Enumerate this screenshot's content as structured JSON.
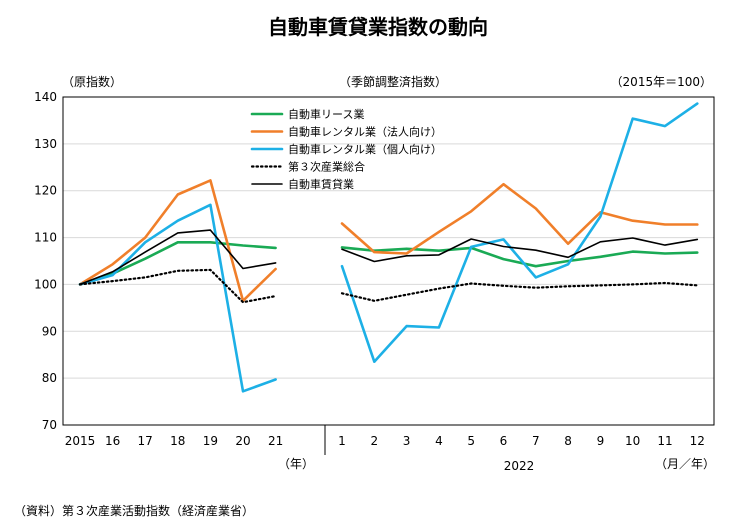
{
  "chart_data": {
    "type": "line",
    "title": "自動車賃貸業指数の動向",
    "left_note": "（原指数）",
    "middle_note": "（季節調整済指数）",
    "right_note": "（2015年＝100）",
    "ylim": [
      70,
      140
    ],
    "yticks": [
      "70",
      "80",
      "90",
      "100",
      "110",
      "120",
      "130",
      "140"
    ],
    "annual": {
      "categories": [
        "2015",
        "16",
        "17",
        "18",
        "19",
        "20",
        "21"
      ],
      "unit_label": "（年）"
    },
    "monthly": {
      "categories": [
        "1",
        "2",
        "3",
        "4",
        "5",
        "6",
        "7",
        "8",
        "9",
        "10",
        "11",
        "12"
      ],
      "year_label": "2022",
      "unit_label": "（月／年）"
    },
    "series": [
      {
        "name": "自動車リース業",
        "color": "#1aaa55",
        "dash": "solid",
        "annual": [
          100,
          102.3,
          105.5,
          109.0,
          109.0,
          108.3,
          107.8
        ],
        "monthly": [
          107.9,
          107.2,
          107.6,
          107.2,
          107.8,
          105.4,
          103.9,
          105.0,
          105.9,
          107.0,
          106.6,
          106.8
        ]
      },
      {
        "name": "自動車レンタル業（法人向け）",
        "color": "#f07f2a",
        "dash": "solid",
        "annual": [
          100,
          104.3,
          110.0,
          119.2,
          122.2,
          96.5,
          103.3
        ],
        "monthly": [
          113.0,
          106.9,
          106.6,
          111.2,
          115.6,
          121.4,
          116.2,
          108.7,
          115.4,
          113.6,
          112.8,
          112.8
        ]
      },
      {
        "name": "自動車レンタル業（個人向け）",
        "color": "#1db0e6",
        "dash": "solid",
        "annual": [
          100,
          102.0,
          109.0,
          113.6,
          117.0,
          77.2,
          79.7
        ],
        "monthly": [
          103.9,
          83.5,
          91.1,
          90.8,
          108.0,
          109.6,
          101.5,
          104.3,
          114.5,
          135.4,
          133.8,
          138.6
        ]
      },
      {
        "name": "第３次産業総合",
        "color": "#000000",
        "dash": "dotted",
        "annual": [
          100,
          100.7,
          101.5,
          102.9,
          103.1,
          96.2,
          97.5
        ],
        "monthly": [
          98.1,
          96.5,
          97.8,
          99.1,
          100.2,
          99.7,
          99.3,
          99.6,
          99.8,
          100.0,
          100.3,
          99.8
        ]
      },
      {
        "name": "自動車賃貸業",
        "color": "#000000",
        "dash": "solid",
        "annual": [
          100,
          102.7,
          106.9,
          111.0,
          111.6,
          103.4,
          104.6
        ],
        "monthly": [
          107.5,
          104.9,
          106.1,
          106.3,
          109.7,
          108.1,
          107.3,
          105.8,
          109.1,
          109.9,
          108.4,
          109.6
        ]
      }
    ],
    "legend_position": "top-left",
    "grid": "horizontal"
  },
  "source_note": "（資料）第３次産業活動指数（経済産業省）"
}
